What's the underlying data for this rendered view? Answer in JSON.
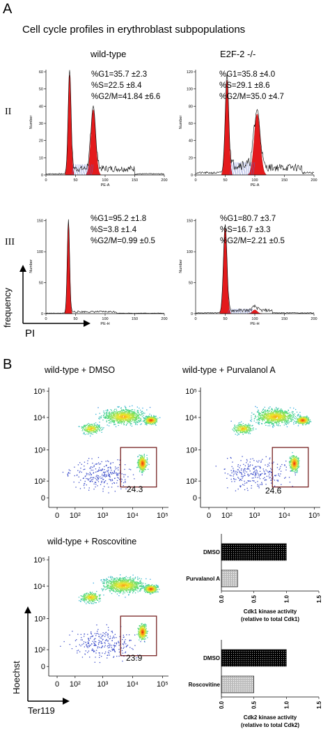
{
  "panelA": {
    "letter": "A",
    "title": "Cell cycle profiles in erythroblast subpopulations",
    "col_wt": "wild-type",
    "col_ko": "E2F-2 -/-",
    "row_II": "II",
    "row_III": "III",
    "y_axis": "frequency",
    "x_axis": "PI",
    "hist_ylabel": "Number",
    "hist_xlabel_top": "PE-A",
    "hist_xlabel_bottom": "PE-H",
    "stats": {
      "wt_II": "%G1=35.7 ±2.3\n%S=22.5 ±8.4\n%G2/M=41.84 ±6.6",
      "ko_II": "%G1=35.8 ±4.0\n%S=29.1 ±8.6\n%G2/M=35.0 ±4.7",
      "wt_III": "%G1=95.2 ±1.8\n%S=3.8 ±1.4\n%G2/M=0.99 ±0.5",
      "ko_III": "%G1=80.7 ±3.7\n%S=16.7 ±3.3\n%G2/M=2.21 ±0.5"
    },
    "xticks": [
      "0",
      "50",
      "100",
      "150",
      "200"
    ],
    "yticks_wt_II": [
      "0",
      "10",
      "20",
      "30",
      "40",
      "50",
      "60"
    ],
    "yticks_ko_II": [
      "0",
      "20",
      "40",
      "60",
      "80",
      "100",
      "120"
    ],
    "yticks_wt_III": [
      "0",
      "50",
      "100",
      "150"
    ],
    "yticks_ko_III": [
      "0",
      "50",
      "100",
      "150"
    ]
  },
  "panelB": {
    "letter": "B",
    "conditions": {
      "dmso": "wild-type + DMSO",
      "purv": "wild-type + Purvalanol A",
      "rosc": "wild-type + Roscovitine"
    },
    "gates": {
      "dmso": "24.3",
      "purv": "24.6",
      "rosc": "23.9"
    },
    "y_axis": "Hoechst",
    "x_axis": "Ter119",
    "fc_yticks": [
      "10⁵",
      "10⁴",
      "10³",
      "10²",
      "0"
    ],
    "fc_xticks": [
      "0",
      "10²",
      "10³",
      "10⁴",
      "10⁵"
    ]
  },
  "chart_data": [
    {
      "type": "bar",
      "orientation": "horizontal",
      "categories": [
        "DMSO",
        "Purvalanol A"
      ],
      "values": [
        1.0,
        0.25
      ],
      "xlabel": "Cdk1 kinase activity\n(relative to total Cdk1)",
      "xlim": [
        0,
        1.5
      ],
      "xticks": [
        "0.0",
        "0.5",
        "1.0",
        "1.5"
      ]
    },
    {
      "type": "bar",
      "orientation": "horizontal",
      "categories": [
        "DMSO",
        "Roscovitine"
      ],
      "values": [
        1.0,
        0.5
      ],
      "xlabel": "Cdk2 kinase activity\n(relative to total Cdk2)",
      "xlim": [
        0,
        1.5
      ],
      "xticks": [
        "0.0",
        "0.5",
        "1.0",
        "1.5"
      ]
    }
  ]
}
